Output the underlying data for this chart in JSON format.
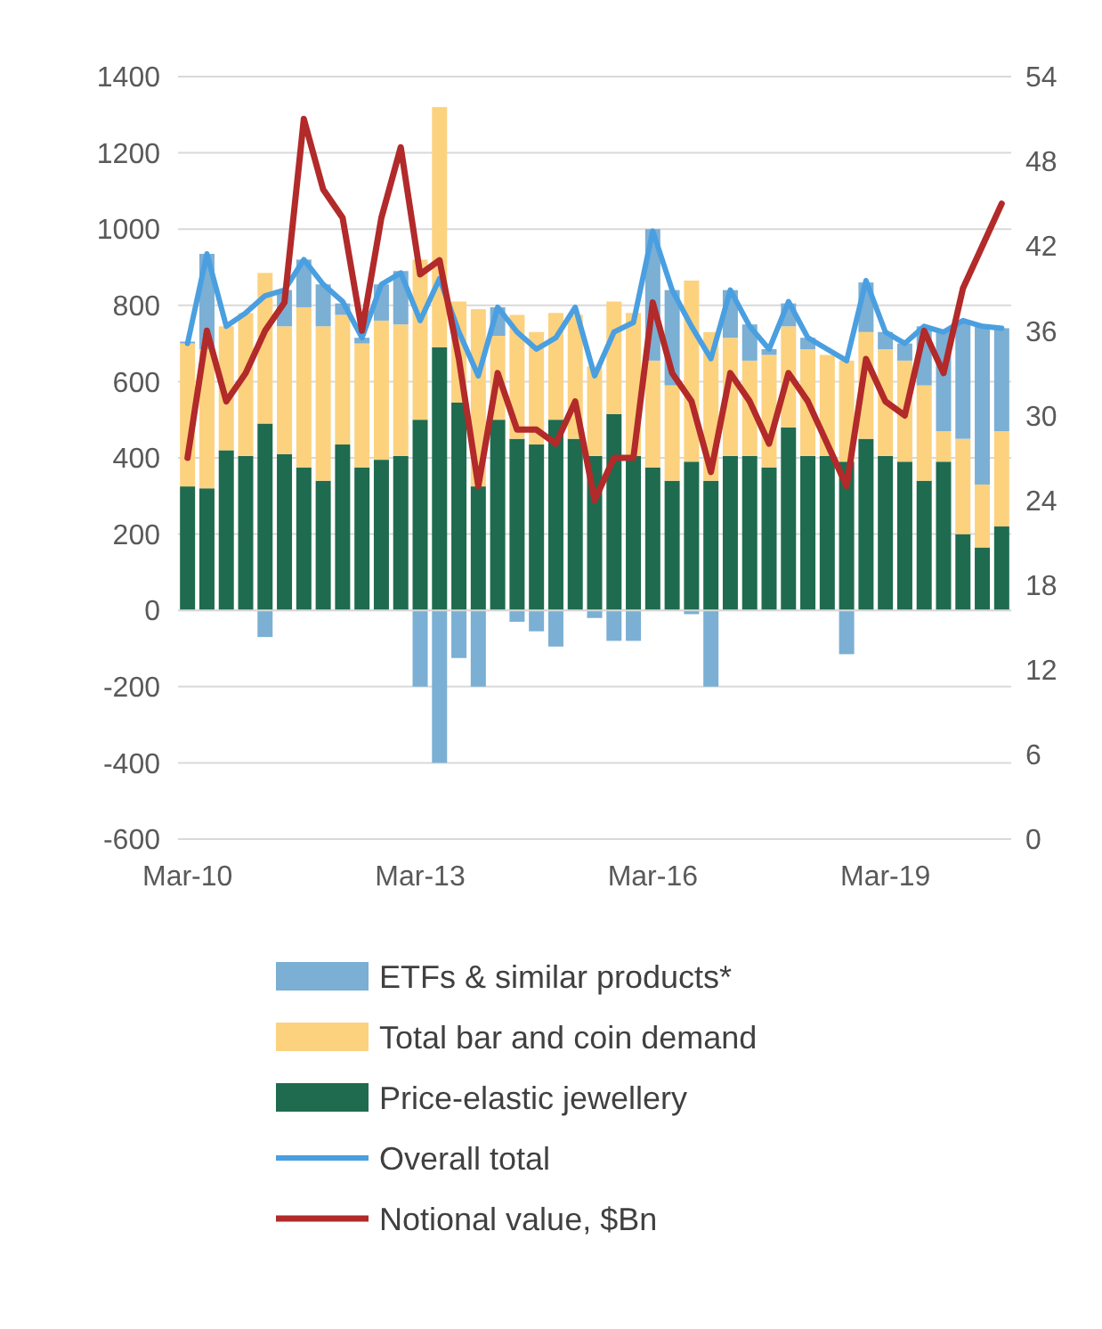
{
  "chart_data": {
    "type": "bar",
    "stacked": true,
    "legend": "bottom",
    "grid": "y",
    "categories": [
      "Mar-10",
      null,
      null,
      null,
      null,
      null,
      null,
      null,
      null,
      null,
      null,
      null,
      "Mar-13",
      null,
      null,
      null,
      null,
      null,
      null,
      null,
      null,
      null,
      null,
      null,
      "Mar-16",
      null,
      null,
      null,
      null,
      null,
      null,
      null,
      null,
      null,
      null,
      null,
      "Mar-19",
      null,
      null,
      null,
      null,
      null,
      null
    ],
    "ylim": [
      -600,
      1400
    ],
    "yticks": [
      -600,
      -400,
      -200,
      0,
      200,
      400,
      600,
      800,
      1000,
      1200,
      1400
    ],
    "y2lim": [
      0,
      54
    ],
    "y2ticks": [
      0,
      6,
      12,
      18,
      24,
      30,
      36,
      42,
      48,
      54
    ],
    "series": [
      {
        "name": "Price-elastic jewellery",
        "color": "#1f6b4f",
        "values": [
          325,
          320,
          420,
          405,
          490,
          410,
          375,
          340,
          435,
          375,
          395,
          405,
          500,
          690,
          545,
          325,
          500,
          450,
          435,
          500,
          450,
          405,
          515,
          405,
          375,
          340,
          390,
          340,
          405,
          405,
          375,
          480,
          405,
          405,
          390,
          450,
          405,
          390,
          340,
          390,
          200,
          165,
          220
        ]
      },
      {
        "name": "Total bar and coin demand",
        "color": "#fcd27f",
        "values": [
          375,
          365,
          325,
          375,
          395,
          335,
          420,
          405,
          340,
          325,
          365,
          345,
          420,
          630,
          265,
          465,
          220,
          325,
          295,
          280,
          325,
          235,
          295,
          375,
          280,
          250,
          475,
          390,
          310,
          250,
          295,
          265,
          280,
          265,
          265,
          280,
          280,
          265,
          250,
          80,
          250,
          165,
          250
        ]
      },
      {
        "name": "ETFs & similar products*",
        "color": "#7bafd4",
        "values": [
          5,
          250,
          null,
          null,
          -70,
          95,
          125,
          110,
          30,
          15,
          95,
          140,
          -200,
          -400,
          -125,
          -200,
          75,
          -30,
          -55,
          -95,
          null,
          -20,
          -80,
          -80,
          345,
          250,
          -10,
          -200,
          125,
          95,
          15,
          60,
          30,
          null,
          -115,
          130,
          45,
          45,
          155,
          265,
          310,
          420,
          270
        ]
      },
      {
        "name": "Overall total",
        "type": "line",
        "color": "#4a9fe0",
        "values": [
          700,
          935,
          745,
          780,
          825,
          840,
          920,
          855,
          810,
          715,
          855,
          885,
          760,
          870,
          730,
          615,
          795,
          730,
          685,
          715,
          795,
          615,
          730,
          755,
          995,
          840,
          745,
          660,
          840,
          745,
          685,
          810,
          715,
          685,
          655,
          865,
          730,
          700,
          745,
          730,
          760,
          745,
          740
        ]
      },
      {
        "name": "Notional value, $Bn",
        "type": "line",
        "axis": "y2",
        "color": "#b22a2a",
        "values": [
          27,
          36,
          31,
          33,
          36,
          38,
          51,
          46,
          44,
          36,
          44,
          49,
          40,
          41,
          34,
          25,
          33,
          29,
          29,
          28,
          31,
          24,
          27,
          27,
          38,
          33,
          31,
          26,
          33,
          31,
          28,
          33,
          31,
          28,
          25,
          34,
          31,
          30,
          36,
          33,
          39,
          42,
          45
        ]
      }
    ]
  }
}
